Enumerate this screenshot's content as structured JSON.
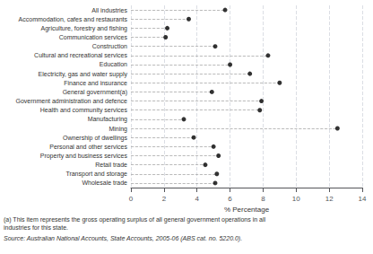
{
  "chart_data": {
    "type": "dot",
    "orientation": "horizontal",
    "categories": [
      "All industries",
      "Accommodation, cafes and restaurants",
      "Agriculture, forestry and fishing",
      "Communication services",
      "Construction",
      "Cultural and recreational services",
      "Education",
      "Electricity, gas and water supply",
      "Finance and insurance",
      "General government(a)",
      "Government administration and defence",
      "Health and community services",
      "Manufacturing",
      "Mining",
      "Ownership of dwellings",
      "Personal and other services",
      "Property and business services",
      "Retail trade",
      "Transport and storage",
      "Wholesale trade"
    ],
    "values": [
      5.7,
      3.5,
      2.2,
      2.1,
      5.1,
      8.3,
      6.0,
      7.2,
      9.0,
      4.9,
      7.9,
      7.8,
      3.2,
      12.5,
      3.8,
      5.0,
      5.3,
      4.5,
      5.2,
      5.1
    ],
    "color": "#000000",
    "marker": "circle",
    "line_style": "dashed",
    "xlabel": "% Percentage",
    "xlim": [
      0,
      14
    ],
    "xticks": [
      0,
      2,
      4,
      6,
      8,
      10,
      12,
      14
    ],
    "grid": true,
    "annotations": [
      "(a) This item represents the gross operating surplus of all general government operations in all\nindustries for this state.",
      "Source: Australian National Accounts, State Accounts, 2005-06 (ABS cat. no. 5220.0)."
    ]
  }
}
